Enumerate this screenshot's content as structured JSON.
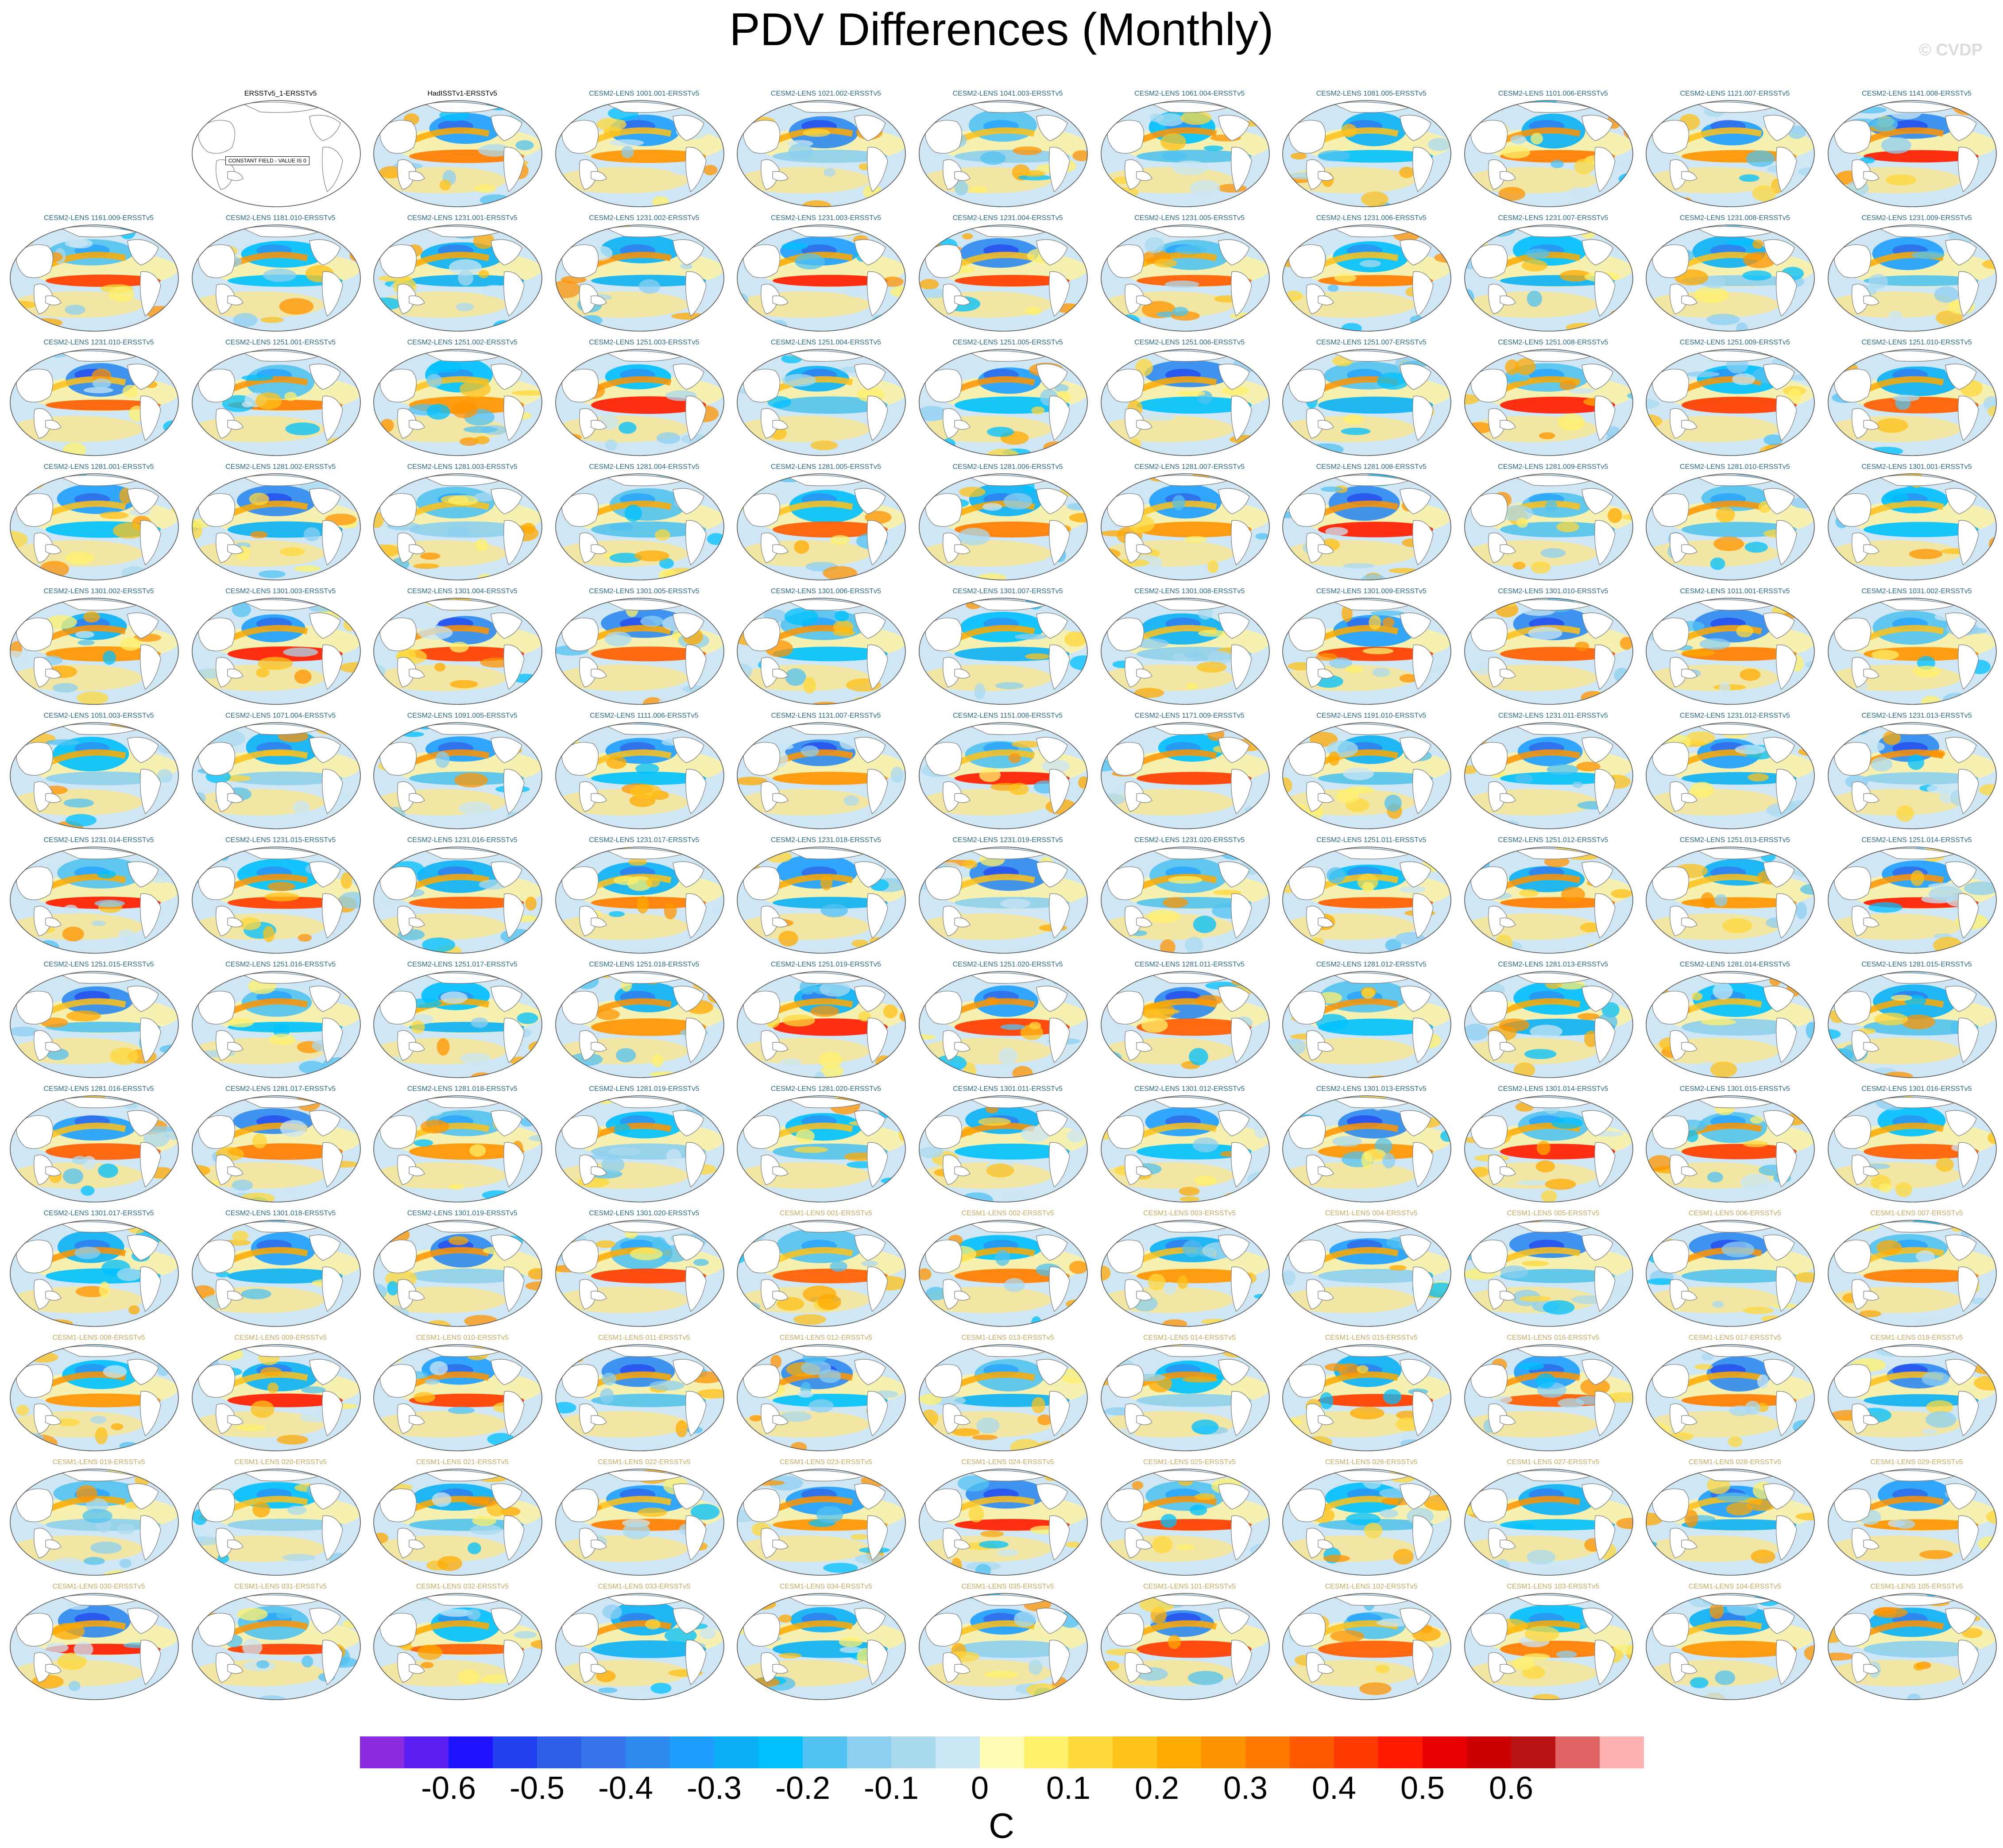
{
  "title": "PDV Differences (Monthly)",
  "watermark": "© CVDP",
  "colorbar": {
    "unit_label": "C",
    "tick_labels": [
      "-0.6",
      "-0.5",
      "-0.4",
      "-0.3",
      "-0.2",
      "-0.1",
      "0",
      "0.1",
      "0.2",
      "0.3",
      "0.4",
      "0.5",
      "0.6"
    ],
    "colors": [
      "#8a2be2",
      "#5a1ef0",
      "#1f14ff",
      "#2140ee",
      "#2f5fe6",
      "#3574eb",
      "#2f8af0",
      "#1e9eff",
      "#0bb0f6",
      "#00c0ff",
      "#52c2f0",
      "#8ccff0",
      "#a9d9ef",
      "#c9e6f4",
      "#fffcb3",
      "#fff06b",
      "#ffd83b",
      "#ffc21a",
      "#ffaa00",
      "#ff9400",
      "#ff7a00",
      "#ff5a00",
      "#ff3a00",
      "#ff1a00",
      "#e80000",
      "#cc0000",
      "#b81414",
      "#e06464",
      "#ffb0b0"
    ]
  },
  "panel_title_colors": {
    "obs": "#000000",
    "cesm2": "#2a6a88",
    "cesm1": "#c9a860"
  },
  "panels": [
    {
      "title": "ERSSTv5_1-ERSSTv5",
      "group": "obs",
      "note": "CONSTANT FIELD - VALUE IS 0"
    },
    {
      "title": "HadISSTv1-ERSSTv5",
      "group": "obs"
    },
    {
      "title": "CESM2-LENS 1001.001-ERSSTv5",
      "group": "cesm2"
    },
    {
      "title": "CESM2-LENS 1021.002-ERSSTv5",
      "group": "cesm2"
    },
    {
      "title": "CESM2-LENS 1041.003-ERSSTv5",
      "group": "cesm2"
    },
    {
      "title": "CESM2-LENS 1061.004-ERSSTv5",
      "group": "cesm2"
    },
    {
      "title": "CESM2-LENS 1081.005-ERSSTv5",
      "group": "cesm2"
    },
    {
      "title": "CESM2-LENS 1101.006-ERSSTv5",
      "group": "cesm2"
    },
    {
      "title": "CESM2-LENS 1121.007-ERSSTv5",
      "group": "cesm2"
    },
    {
      "title": "CESM2-LENS 1141.008-ERSSTv5",
      "group": "cesm2"
    },
    {
      "title": "CESM2-LENS 1161.009-ERSSTv5",
      "group": "cesm2"
    },
    {
      "title": "CESM2-LENS 1181.010-ERSSTv5",
      "group": "cesm2"
    },
    {
      "title": "CESM2-LENS 1231.001-ERSSTv5",
      "group": "cesm2"
    },
    {
      "title": "CESM2-LENS 1231.002-ERSSTv5",
      "group": "cesm2"
    },
    {
      "title": "CESM2-LENS 1231.003-ERSSTv5",
      "group": "cesm2"
    },
    {
      "title": "CESM2-LENS 1231.004-ERSSTv5",
      "group": "cesm2"
    },
    {
      "title": "CESM2-LENS 1231.005-ERSSTv5",
      "group": "cesm2"
    },
    {
      "title": "CESM2-LENS 1231.006-ERSSTv5",
      "group": "cesm2"
    },
    {
      "title": "CESM2-LENS 1231.007-ERSSTv5",
      "group": "cesm2"
    },
    {
      "title": "CESM2-LENS 1231.008-ERSSTv5",
      "group": "cesm2"
    },
    {
      "title": "CESM2-LENS 1231.009-ERSSTv5",
      "group": "cesm2"
    },
    {
      "title": "CESM2-LENS 1231.010-ERSSTv5",
      "group": "cesm2"
    },
    {
      "title": "CESM2-LENS 1251.001-ERSSTv5",
      "group": "cesm2"
    },
    {
      "title": "CESM2-LENS 1251.002-ERSSTv5",
      "group": "cesm2"
    },
    {
      "title": "CESM2-LENS 1251.003-ERSSTv5",
      "group": "cesm2"
    },
    {
      "title": "CESM2-LENS 1251.004-ERSSTv5",
      "group": "cesm2"
    },
    {
      "title": "CESM2-LENS 1251.005-ERSSTv5",
      "group": "cesm2"
    },
    {
      "title": "CESM2-LENS 1251.006-ERSSTv5",
      "group": "cesm2"
    },
    {
      "title": "CESM2-LENS 1251.007-ERSSTv5",
      "group": "cesm2"
    },
    {
      "title": "CESM2-LENS 1251.008-ERSSTv5",
      "group": "cesm2"
    },
    {
      "title": "CESM2-LENS 1251.009-ERSSTv5",
      "group": "cesm2"
    },
    {
      "title": "CESM2-LENS 1251.010-ERSSTv5",
      "group": "cesm2"
    },
    {
      "title": "CESM2-LENS 1281.001-ERSSTv5",
      "group": "cesm2"
    },
    {
      "title": "CESM2-LENS 1281.002-ERSSTv5",
      "group": "cesm2"
    },
    {
      "title": "CESM2-LENS 1281.003-ERSSTv5",
      "group": "cesm2"
    },
    {
      "title": "CESM2-LENS 1281.004-ERSSTv5",
      "group": "cesm2"
    },
    {
      "title": "CESM2-LENS 1281.005-ERSSTv5",
      "group": "cesm2"
    },
    {
      "title": "CESM2-LENS 1281.006-ERSSTv5",
      "group": "cesm2"
    },
    {
      "title": "CESM2-LENS 1281.007-ERSSTv5",
      "group": "cesm2"
    },
    {
      "title": "CESM2-LENS 1281.008-ERSSTv5",
      "group": "cesm2"
    },
    {
      "title": "CESM2-LENS 1281.009-ERSSTv5",
      "group": "cesm2"
    },
    {
      "title": "CESM2-LENS 1281.010-ERSSTv5",
      "group": "cesm2"
    },
    {
      "title": "CESM2-LENS 1301.001-ERSSTv5",
      "group": "cesm2"
    },
    {
      "title": "CESM2-LENS 1301.002-ERSSTv5",
      "group": "cesm2"
    },
    {
      "title": "CESM2-LENS 1301.003-ERSSTv5",
      "group": "cesm2"
    },
    {
      "title": "CESM2-LENS 1301.004-ERSSTv5",
      "group": "cesm2"
    },
    {
      "title": "CESM2-LENS 1301.005-ERSSTv5",
      "group": "cesm2"
    },
    {
      "title": "CESM2-LENS 1301.006-ERSSTv5",
      "group": "cesm2"
    },
    {
      "title": "CESM2-LENS 1301.007-ERSSTv5",
      "group": "cesm2"
    },
    {
      "title": "CESM2-LENS 1301.008-ERSSTv5",
      "group": "cesm2"
    },
    {
      "title": "CESM2-LENS 1301.009-ERSSTv5",
      "group": "cesm2"
    },
    {
      "title": "CESM2-LENS 1301.010-ERSSTv5",
      "group": "cesm2"
    },
    {
      "title": "CESM2-LENS 1011.001-ERSSTv5",
      "group": "cesm2"
    },
    {
      "title": "CESM2-LENS 1031.002-ERSSTv5",
      "group": "cesm2"
    },
    {
      "title": "CESM2-LENS 1051.003-ERSSTv5",
      "group": "cesm2"
    },
    {
      "title": "CESM2-LENS 1071.004-ERSSTv5",
      "group": "cesm2"
    },
    {
      "title": "CESM2-LENS 1091.005-ERSSTv5",
      "group": "cesm2"
    },
    {
      "title": "CESM2-LENS 1111.006-ERSSTv5",
      "group": "cesm2"
    },
    {
      "title": "CESM2-LENS 1131.007-ERSSTv5",
      "group": "cesm2"
    },
    {
      "title": "CESM2-LENS 1151.008-ERSSTv5",
      "group": "cesm2"
    },
    {
      "title": "CESM2-LENS 1171.009-ERSSTv5",
      "group": "cesm2"
    },
    {
      "title": "CESM2-LENS 1191.010-ERSSTv5",
      "group": "cesm2"
    },
    {
      "title": "CESM2-LENS 1231.011-ERSSTv5",
      "group": "cesm2"
    },
    {
      "title": "CESM2-LENS 1231.012-ERSSTv5",
      "group": "cesm2"
    },
    {
      "title": "CESM2-LENS 1231.013-ERSSTv5",
      "group": "cesm2"
    },
    {
      "title": "CESM2-LENS 1231.014-ERSSTv5",
      "group": "cesm2"
    },
    {
      "title": "CESM2-LENS 1231.015-ERSSTv5",
      "group": "cesm2"
    },
    {
      "title": "CESM2-LENS 1231.016-ERSSTv5",
      "group": "cesm2"
    },
    {
      "title": "CESM2-LENS 1231.017-ERSSTv5",
      "group": "cesm2"
    },
    {
      "title": "CESM2-LENS 1231.018-ERSSTv5",
      "group": "cesm2"
    },
    {
      "title": "CESM2-LENS 1231.019-ERSSTv5",
      "group": "cesm2"
    },
    {
      "title": "CESM2-LENS 1231.020-ERSSTv5",
      "group": "cesm2"
    },
    {
      "title": "CESM2-LENS 1251.011-ERSSTv5",
      "group": "cesm2"
    },
    {
      "title": "CESM2-LENS 1251.012-ERSSTv5",
      "group": "cesm2"
    },
    {
      "title": "CESM2-LENS 1251.013-ERSSTv5",
      "group": "cesm2"
    },
    {
      "title": "CESM2-LENS 1251.014-ERSSTv5",
      "group": "cesm2"
    },
    {
      "title": "CESM2-LENS 1251.015-ERSSTv5",
      "group": "cesm2"
    },
    {
      "title": "CESM2-LENS 1251.016-ERSSTv5",
      "group": "cesm2"
    },
    {
      "title": "CESM2-LENS 1251.017-ERSSTv5",
      "group": "cesm2"
    },
    {
      "title": "CESM2-LENS 1251.018-ERSSTv5",
      "group": "cesm2"
    },
    {
      "title": "CESM2-LENS 1251.019-ERSSTv5",
      "group": "cesm2"
    },
    {
      "title": "CESM2-LENS 1251.020-ERSSTv5",
      "group": "cesm2"
    },
    {
      "title": "CESM2-LENS 1281.011-ERSSTv5",
      "group": "cesm2"
    },
    {
      "title": "CESM2-LENS 1281.012-ERSSTv5",
      "group": "cesm2"
    },
    {
      "title": "CESM2-LENS 1281.013-ERSSTv5",
      "group": "cesm2"
    },
    {
      "title": "CESM2-LENS 1281.014-ERSSTv5",
      "group": "cesm2"
    },
    {
      "title": "CESM2-LENS 1281.015-ERSSTv5",
      "group": "cesm2"
    },
    {
      "title": "CESM2-LENS 1281.016-ERSSTv5",
      "group": "cesm2"
    },
    {
      "title": "CESM2-LENS 1281.017-ERSSTv5",
      "group": "cesm2"
    },
    {
      "title": "CESM2-LENS 1281.018-ERSSTv5",
      "group": "cesm2"
    },
    {
      "title": "CESM2-LENS 1281.019-ERSSTv5",
      "group": "cesm2"
    },
    {
      "title": "CESM2-LENS 1281.020-ERSSTv5",
      "group": "cesm2"
    },
    {
      "title": "CESM2-LENS 1301.011-ERSSTv5",
      "group": "cesm2"
    },
    {
      "title": "CESM2-LENS 1301.012-ERSSTv5",
      "group": "cesm2"
    },
    {
      "title": "CESM2-LENS 1301.013-ERSSTv5",
      "group": "cesm2"
    },
    {
      "title": "CESM2-LENS 1301.014-ERSSTv5",
      "group": "cesm2"
    },
    {
      "title": "CESM2-LENS 1301.015-ERSSTv5",
      "group": "cesm2"
    },
    {
      "title": "CESM2-LENS 1301.016-ERSSTv5",
      "group": "cesm2"
    },
    {
      "title": "CESM2-LENS 1301.017-ERSSTv5",
      "group": "cesm2"
    },
    {
      "title": "CESM2-LENS 1301.018-ERSSTv5",
      "group": "cesm2"
    },
    {
      "title": "CESM2-LENS 1301.019-ERSSTv5",
      "group": "cesm2"
    },
    {
      "title": "CESM2-LENS 1301.020-ERSSTv5",
      "group": "cesm2"
    },
    {
      "title": "CESM1-LENS 001-ERSSTv5",
      "group": "cesm1"
    },
    {
      "title": "CESM1-LENS 002-ERSSTv5",
      "group": "cesm1"
    },
    {
      "title": "CESM1-LENS 003-ERSSTv5",
      "group": "cesm1"
    },
    {
      "title": "CESM1-LENS 004-ERSSTv5",
      "group": "cesm1"
    },
    {
      "title": "CESM1-LENS 005-ERSSTv5",
      "group": "cesm1"
    },
    {
      "title": "CESM1-LENS 006-ERSSTv5",
      "group": "cesm1"
    },
    {
      "title": "CESM1-LENS 007-ERSSTv5",
      "group": "cesm1"
    },
    {
      "title": "CESM1-LENS 008-ERSSTv5",
      "group": "cesm1"
    },
    {
      "title": "CESM1-LENS 009-ERSSTv5",
      "group": "cesm1"
    },
    {
      "title": "CESM1-LENS 010-ERSSTv5",
      "group": "cesm1"
    },
    {
      "title": "CESM1-LENS 011-ERSSTv5",
      "group": "cesm1"
    },
    {
      "title": "CESM1-LENS 012-ERSSTv5",
      "group": "cesm1"
    },
    {
      "title": "CESM1-LENS 013-ERSSTv5",
      "group": "cesm1"
    },
    {
      "title": "CESM1-LENS 014-ERSSTv5",
      "group": "cesm1"
    },
    {
      "title": "CESM1-LENS 015-ERSSTv5",
      "group": "cesm1"
    },
    {
      "title": "CESM1-LENS 016-ERSSTv5",
      "group": "cesm1"
    },
    {
      "title": "CESM1-LENS 017-ERSSTv5",
      "group": "cesm1"
    },
    {
      "title": "CESM1-LENS 018-ERSSTv5",
      "group": "cesm1"
    },
    {
      "title": "CESM1-LENS 019-ERSSTv5",
      "group": "cesm1"
    },
    {
      "title": "CESM1-LENS 020-ERSSTv5",
      "group": "cesm1"
    },
    {
      "title": "CESM1-LENS 021-ERSSTv5",
      "group": "cesm1"
    },
    {
      "title": "CESM1-LENS 022-ERSSTv5",
      "group": "cesm1"
    },
    {
      "title": "CESM1-LENS 023-ERSSTv5",
      "group": "cesm1"
    },
    {
      "title": "CESM1-LENS 024-ERSSTv5",
      "group": "cesm1"
    },
    {
      "title": "CESM1-LENS 025-ERSSTv5",
      "group": "cesm1"
    },
    {
      "title": "CESM1-LENS 026-ERSSTv5",
      "group": "cesm1"
    },
    {
      "title": "CESM1-LENS 027-ERSSTv5",
      "group": "cesm1"
    },
    {
      "title": "CESM1-LENS 028-ERSSTv5",
      "group": "cesm1"
    },
    {
      "title": "CESM1-LENS 029-ERSSTv5",
      "group": "cesm1"
    },
    {
      "title": "CESM1-LENS 030-ERSSTv5",
      "group": "cesm1"
    },
    {
      "title": "CESM1-LENS 031-ERSSTv5",
      "group": "cesm1"
    },
    {
      "title": "CESM1-LENS 032-ERSSTv5",
      "group": "cesm1"
    },
    {
      "title": "CESM1-LENS 033-ERSSTv5",
      "group": "cesm1"
    },
    {
      "title": "CESM1-LENS 034-ERSSTv5",
      "group": "cesm1"
    },
    {
      "title": "CESM1-LENS 035-ERSSTv5",
      "group": "cesm1"
    },
    {
      "title": "CESM1-LENS 101-ERSSTv5",
      "group": "cesm1"
    },
    {
      "title": "CESM1-LENS 102-ERSSTv5",
      "group": "cesm1"
    },
    {
      "title": "CESM1-LENS 103-ERSSTv5",
      "group": "cesm1"
    },
    {
      "title": "CESM1-LENS 104-ERSSTv5",
      "group": "cesm1"
    },
    {
      "title": "CESM1-LENS 105-ERSSTv5",
      "group": "cesm1"
    }
  ]
}
